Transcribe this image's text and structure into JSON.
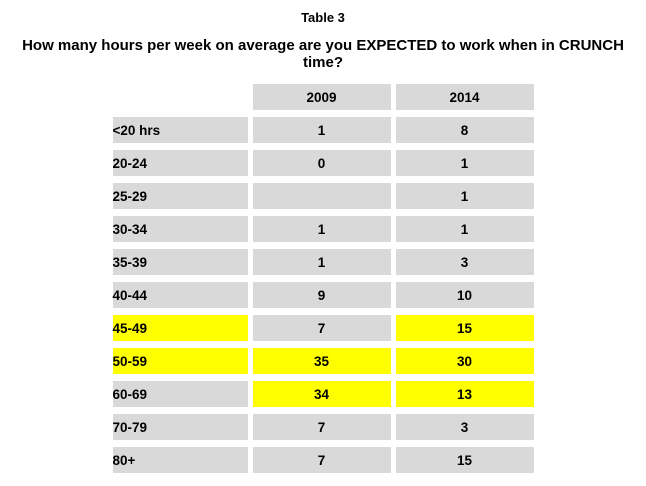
{
  "title": "Table 3",
  "question": "How many hours per week on average are you EXPECTED to work when in CRUNCH time?",
  "colors": {
    "cell_gray": "#d9d9d9",
    "highlight_yellow": "#ffff00",
    "text": "#000000",
    "background": "#ffffff"
  },
  "chart_data": {
    "type": "table",
    "title": "Table 3",
    "subtitle": "How many hours per week on average are you EXPECTED to work when in CRUNCH time?",
    "columns": [
      "",
      "2009",
      "2014"
    ],
    "categories": [
      "<20 hrs",
      "20-24",
      "25-29",
      "30-34",
      "35-39",
      "40-44",
      "45-49",
      "50-59",
      "60-69",
      "70-79",
      "80+"
    ],
    "series": [
      {
        "name": "2009",
        "values": [
          1,
          0,
          null,
          1,
          1,
          9,
          7,
          35,
          34,
          7,
          7
        ]
      },
      {
        "name": "2014",
        "values": [
          8,
          1,
          1,
          1,
          3,
          10,
          15,
          30,
          13,
          3,
          15
        ]
      }
    ],
    "highlighted_cells": [
      "45-49 label",
      "45-49 2014",
      "50-59 label",
      "50-59 2009",
      "50-59 2014",
      "60-69 2009",
      "60-69 2014"
    ],
    "highlight_color": "#ffff00"
  },
  "table": {
    "columns": [
      "",
      "2009",
      "2014"
    ],
    "rows": [
      {
        "label": "<20 hrs",
        "v2009": "1",
        "v2014": "8"
      },
      {
        "label": "20-24",
        "v2009": "0",
        "v2014": "1"
      },
      {
        "label": "25-29",
        "v2009": "",
        "v2014": "1"
      },
      {
        "label": "30-34",
        "v2009": "1",
        "v2014": "1"
      },
      {
        "label": "35-39",
        "v2009": "1",
        "v2014": "3"
      },
      {
        "label": "40-44",
        "v2009": "9",
        "v2014": "10"
      },
      {
        "label": "45-49",
        "v2009": "7",
        "v2014": "15"
      },
      {
        "label": "50-59",
        "v2009": "35",
        "v2014": "30"
      },
      {
        "label": "60-69",
        "v2009": "34",
        "v2014": "13"
      },
      {
        "label": "70-79",
        "v2009": "7",
        "v2014": "3"
      },
      {
        "label": "80+",
        "v2009": "7",
        "v2014": "15"
      }
    ]
  }
}
